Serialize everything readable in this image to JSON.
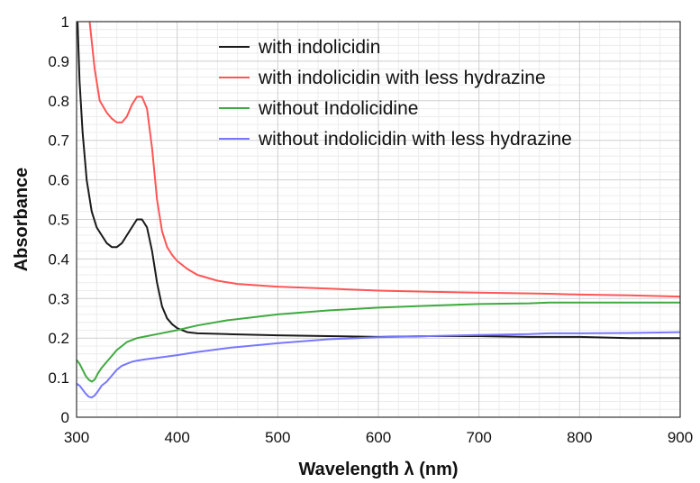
{
  "chart_data": {
    "type": "line",
    "title": "",
    "xlabel": "Wavelength λ (nm)",
    "ylabel": "Absorbance",
    "xlim": [
      300,
      900
    ],
    "ylim": [
      0,
      1
    ],
    "xticks": [
      "300",
      "400",
      "500",
      "600",
      "700",
      "800",
      "900"
    ],
    "yticks": [
      "0",
      "0.1",
      "0.2",
      "0.3",
      "0.4",
      "0.5",
      "0.6",
      "0.7",
      "0.8",
      "0.9",
      "1"
    ],
    "grid": true,
    "legend_position": "top-right",
    "series": [
      {
        "name": "with indolicidin",
        "color": "#1a1a1a",
        "points": [
          [
            301,
            1.0
          ],
          [
            303,
            0.85
          ],
          [
            306,
            0.72
          ],
          [
            310,
            0.6
          ],
          [
            315,
            0.52
          ],
          [
            320,
            0.48
          ],
          [
            325,
            0.46
          ],
          [
            330,
            0.44
          ],
          [
            335,
            0.43
          ],
          [
            340,
            0.43
          ],
          [
            345,
            0.44
          ],
          [
            350,
            0.46
          ],
          [
            355,
            0.48
          ],
          [
            360,
            0.5
          ],
          [
            365,
            0.5
          ],
          [
            370,
            0.48
          ],
          [
            375,
            0.42
          ],
          [
            380,
            0.34
          ],
          [
            385,
            0.28
          ],
          [
            390,
            0.25
          ],
          [
            395,
            0.235
          ],
          [
            400,
            0.225
          ],
          [
            410,
            0.215
          ],
          [
            420,
            0.212
          ],
          [
            450,
            0.21
          ],
          [
            500,
            0.207
          ],
          [
            550,
            0.205
          ],
          [
            600,
            0.203
          ],
          [
            650,
            0.205
          ],
          [
            700,
            0.205
          ],
          [
            750,
            0.203
          ],
          [
            770,
            0.203
          ],
          [
            800,
            0.203
          ],
          [
            850,
            0.2
          ],
          [
            900,
            0.2
          ]
        ]
      },
      {
        "name": "with indolicidin with less hydrazine",
        "color": "#ff5555",
        "points": [
          [
            313,
            1.0
          ],
          [
            318,
            0.88
          ],
          [
            323,
            0.8
          ],
          [
            330,
            0.77
          ],
          [
            335,
            0.755
          ],
          [
            340,
            0.745
          ],
          [
            345,
            0.745
          ],
          [
            350,
            0.76
          ],
          [
            355,
            0.79
          ],
          [
            360,
            0.81
          ],
          [
            365,
            0.81
          ],
          [
            370,
            0.78
          ],
          [
            375,
            0.68
          ],
          [
            380,
            0.55
          ],
          [
            385,
            0.47
          ],
          [
            390,
            0.43
          ],
          [
            395,
            0.41
          ],
          [
            400,
            0.395
          ],
          [
            410,
            0.375
          ],
          [
            420,
            0.36
          ],
          [
            440,
            0.345
          ],
          [
            460,
            0.337
          ],
          [
            500,
            0.33
          ],
          [
            550,
            0.325
          ],
          [
            600,
            0.32
          ],
          [
            650,
            0.317
          ],
          [
            700,
            0.315
          ],
          [
            750,
            0.313
          ],
          [
            770,
            0.312
          ],
          [
            800,
            0.31
          ],
          [
            850,
            0.308
          ],
          [
            900,
            0.305
          ]
        ]
      },
      {
        "name": "without Indolicidine",
        "color": "#3faa3f",
        "points": [
          [
            300,
            0.145
          ],
          [
            303,
            0.135
          ],
          [
            306,
            0.12
          ],
          [
            309,
            0.105
          ],
          [
            312,
            0.095
          ],
          [
            315,
            0.09
          ],
          [
            318,
            0.095
          ],
          [
            321,
            0.11
          ],
          [
            325,
            0.125
          ],
          [
            330,
            0.14
          ],
          [
            335,
            0.155
          ],
          [
            340,
            0.17
          ],
          [
            345,
            0.18
          ],
          [
            350,
            0.19
          ],
          [
            355,
            0.195
          ],
          [
            360,
            0.2
          ],
          [
            370,
            0.205
          ],
          [
            380,
            0.21
          ],
          [
            400,
            0.22
          ],
          [
            420,
            0.232
          ],
          [
            450,
            0.245
          ],
          [
            500,
            0.26
          ],
          [
            550,
            0.27
          ],
          [
            600,
            0.277
          ],
          [
            650,
            0.282
          ],
          [
            700,
            0.286
          ],
          [
            750,
            0.288
          ],
          [
            770,
            0.29
          ],
          [
            800,
            0.29
          ],
          [
            850,
            0.29
          ],
          [
            900,
            0.29
          ]
        ]
      },
      {
        "name": "without indolicidin with less hydrazine",
        "color": "#7777ff",
        "points": [
          [
            300,
            0.085
          ],
          [
            303,
            0.08
          ],
          [
            306,
            0.07
          ],
          [
            309,
            0.06
          ],
          [
            312,
            0.052
          ],
          [
            315,
            0.05
          ],
          [
            318,
            0.055
          ],
          [
            321,
            0.065
          ],
          [
            325,
            0.08
          ],
          [
            330,
            0.09
          ],
          [
            335,
            0.105
          ],
          [
            340,
            0.12
          ],
          [
            345,
            0.13
          ],
          [
            350,
            0.135
          ],
          [
            355,
            0.14
          ],
          [
            360,
            0.143
          ],
          [
            370,
            0.147
          ],
          [
            380,
            0.15
          ],
          [
            400,
            0.157
          ],
          [
            420,
            0.165
          ],
          [
            450,
            0.175
          ],
          [
            500,
            0.187
          ],
          [
            550,
            0.197
          ],
          [
            600,
            0.202
          ],
          [
            650,
            0.205
          ],
          [
            700,
            0.208
          ],
          [
            750,
            0.21
          ],
          [
            770,
            0.212
          ],
          [
            800,
            0.212
          ],
          [
            850,
            0.213
          ],
          [
            900,
            0.215
          ]
        ]
      }
    ]
  }
}
